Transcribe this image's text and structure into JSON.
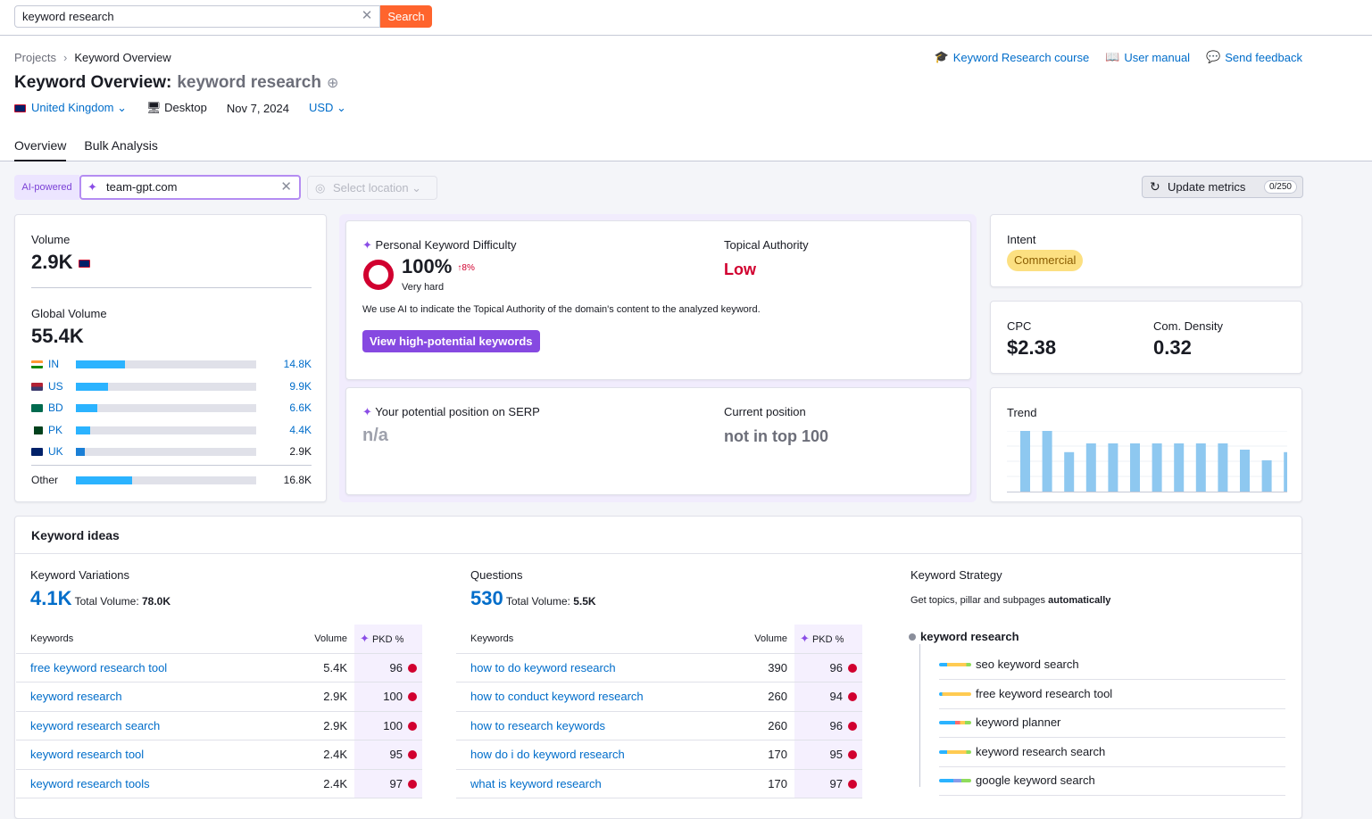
{
  "search": {
    "value": "keyword research",
    "button": "Search"
  },
  "breadcrumb": {
    "items": [
      "Projects",
      "Keyword Overview"
    ]
  },
  "header_links": {
    "course": "Keyword Research course",
    "manual": "User manual",
    "feedback": "Send feedback"
  },
  "title": {
    "prefix": "Keyword Overview:",
    "keyword": "keyword research"
  },
  "filters": {
    "country": "United Kingdom",
    "device": "Desktop",
    "date": "Nov 7, 2024",
    "currency": "USD"
  },
  "tabs": [
    "Overview",
    "Bulk Analysis"
  ],
  "ai": {
    "badge": "AI-powered",
    "domain": "team-gpt.com",
    "location_placeholder": "Select location",
    "update_label": "Update metrics",
    "update_count": "0/250"
  },
  "volume": {
    "label": "Volume",
    "value": "2.9K",
    "global_label": "Global Volume",
    "global_value": "55.4K",
    "countries": [
      {
        "code": "IN",
        "value": "14.8K",
        "pct": 0.27,
        "color": "#2bb3ff"
      },
      {
        "code": "US",
        "value": "9.9K",
        "pct": 0.18,
        "color": "#2bb3ff"
      },
      {
        "code": "BD",
        "value": "6.6K",
        "pct": 0.12,
        "color": "#2bb3ff"
      },
      {
        "code": "PK",
        "value": "4.4K",
        "pct": 0.08,
        "color": "#2bb3ff"
      },
      {
        "code": "UK",
        "value": "2.9K",
        "pct": 0.05,
        "color": "#1a7fd6"
      }
    ],
    "other": {
      "label": "Other",
      "value": "16.8K",
      "pct": 0.31
    }
  },
  "pkd": {
    "label": "Personal Keyword Difficulty",
    "value": "100%",
    "change": "↑8%",
    "level": "Very hard",
    "note": "We use AI to indicate the Topical Authority of the domain's content to the analyzed keyword.",
    "button": "View high-potential keywords",
    "ta_label": "Topical Authority",
    "ta_value": "Low",
    "red": "#d1002f"
  },
  "serp": {
    "label": "Your potential position on SERP",
    "value": "n/a",
    "current_label": "Current position",
    "current_value": "not in top 100"
  },
  "intent": {
    "label": "Intent",
    "value": "Commercial"
  },
  "cpc": {
    "label": "CPC",
    "value": "$2.38",
    "density_label": "Com. Density",
    "density_value": "0.32"
  },
  "trend": {
    "label": "Trend",
    "values": [
      1.0,
      1.0,
      0.66,
      0.8,
      0.8,
      0.8,
      0.8,
      0.8,
      0.8,
      0.8,
      0.7,
      0.53,
      0.66
    ]
  },
  "keyword_ideas": {
    "title": "Keyword ideas",
    "variations": {
      "label": "Keyword Variations",
      "count": "4.1K",
      "total_label": "Total Volume:",
      "total": "78.0K",
      "headers": [
        "Keywords",
        "Volume",
        "PKD %"
      ],
      "rows": [
        {
          "kw": "free keyword research tool",
          "vol": "5.4K",
          "pkd": "96"
        },
        {
          "kw": "keyword research",
          "vol": "2.9K",
          "pkd": "100"
        },
        {
          "kw": "keyword research search",
          "vol": "2.9K",
          "pkd": "100"
        },
        {
          "kw": "keyword research tool",
          "vol": "2.4K",
          "pkd": "95"
        },
        {
          "kw": "keyword research tools",
          "vol": "2.4K",
          "pkd": "97"
        }
      ]
    },
    "questions": {
      "label": "Questions",
      "count": "530",
      "total_label": "Total Volume:",
      "total": "5.5K",
      "headers": [
        "Keywords",
        "Volume",
        "PKD %"
      ],
      "rows": [
        {
          "kw": "how to do keyword research",
          "vol": "390",
          "pkd": "96"
        },
        {
          "kw": "how to conduct keyword research",
          "vol": "260",
          "pkd": "94"
        },
        {
          "kw": "how to research keywords",
          "vol": "260",
          "pkd": "96"
        },
        {
          "kw": "how do i do keyword research",
          "vol": "170",
          "pkd": "95"
        },
        {
          "kw": "what is keyword research",
          "vol": "170",
          "pkd": "97"
        }
      ]
    },
    "strategy": {
      "label": "Keyword Strategy",
      "desc": "Get topics, pillar and subpages",
      "desc_bold": "automatically",
      "root": "keyword research",
      "items": [
        "seo keyword search",
        "free keyword research tool",
        "keyword planner",
        "keyword research search",
        "google keyword search"
      ]
    }
  }
}
